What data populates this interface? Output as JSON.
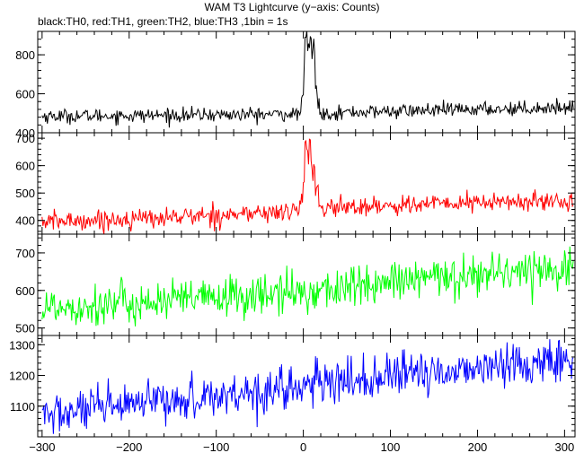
{
  "title": "WAM T3 Lightcurve (y−axis: Counts)",
  "subtitle": "black:TH0, red:TH1, green:TH2, blue:TH3 ,1bin = 1s",
  "chart_data": {
    "type": "line",
    "xlim": [
      -305,
      312
    ],
    "x_ticks": [
      -300,
      -200,
      -100,
      0,
      100,
      200,
      300
    ],
    "x_tick_labels": [
      "−300",
      "−200",
      "−100",
      "0",
      "100",
      "200",
      "300"
    ],
    "bin_seconds": 1,
    "grid": false,
    "panels": [
      {
        "name": "TH0",
        "color": "#000000",
        "ylim": [
          400,
          920
        ],
        "y_ticks": [
          400,
          600,
          800
        ],
        "y_tick_labels": [
          "400",
          "600",
          "800"
        ],
        "baseline": {
          "x": [
            -300,
            -200,
            -100,
            -20,
            20,
            100,
            200,
            300
          ],
          "y": [
            485,
            488,
            492,
            495,
            500,
            510,
            520,
            530
          ]
        },
        "noise_sd": 18,
        "burst": {
          "x": [
            -5,
            0,
            2,
            4,
            6,
            8,
            10,
            12,
            14,
            18
          ],
          "y": [
            500,
            600,
            860,
            910,
            820,
            900,
            780,
            880,
            650,
            520
          ]
        }
      },
      {
        "name": "TH1",
        "color": "#ff0000",
        "ylim": [
          350,
          720
        ],
        "y_ticks": [
          400,
          500,
          600,
          700
        ],
        "y_tick_labels": [
          "400",
          "500",
          "600",
          "700"
        ],
        "baseline": {
          "x": [
            -300,
            -200,
            -100,
            -20,
            20,
            100,
            200,
            300
          ],
          "y": [
            395,
            405,
            420,
            430,
            445,
            455,
            465,
            470
          ]
        },
        "noise_sd": 18,
        "burst": {
          "x": [
            -5,
            0,
            2,
            4,
            6,
            8,
            10,
            12,
            14,
            18
          ],
          "y": [
            450,
            520,
            640,
            720,
            600,
            700,
            560,
            620,
            520,
            450
          ]
        }
      },
      {
        "name": "TH2",
        "color": "#00ff00",
        "ylim": [
          480,
          750
        ],
        "y_ticks": [
          500,
          600,
          700
        ],
        "y_tick_labels": [
          "500",
          "600",
          "700"
        ],
        "baseline": {
          "x": [
            -300,
            -200,
            -100,
            0,
            100,
            200,
            300
          ],
          "y": [
            555,
            565,
            580,
            595,
            620,
            645,
            660
          ]
        },
        "noise_sd": 28
      },
      {
        "name": "TH3",
        "color": "#0000ff",
        "ylim": [
          1000,
          1330
        ],
        "y_ticks": [
          1100,
          1200,
          1300
        ],
        "y_tick_labels": [
          "1100",
          "1200",
          "1300"
        ],
        "baseline": {
          "x": [
            -300,
            -200,
            -100,
            0,
            100,
            200,
            300
          ],
          "y": [
            1070,
            1100,
            1135,
            1165,
            1195,
            1225,
            1250
          ]
        },
        "noise_sd": 35
      }
    ]
  }
}
